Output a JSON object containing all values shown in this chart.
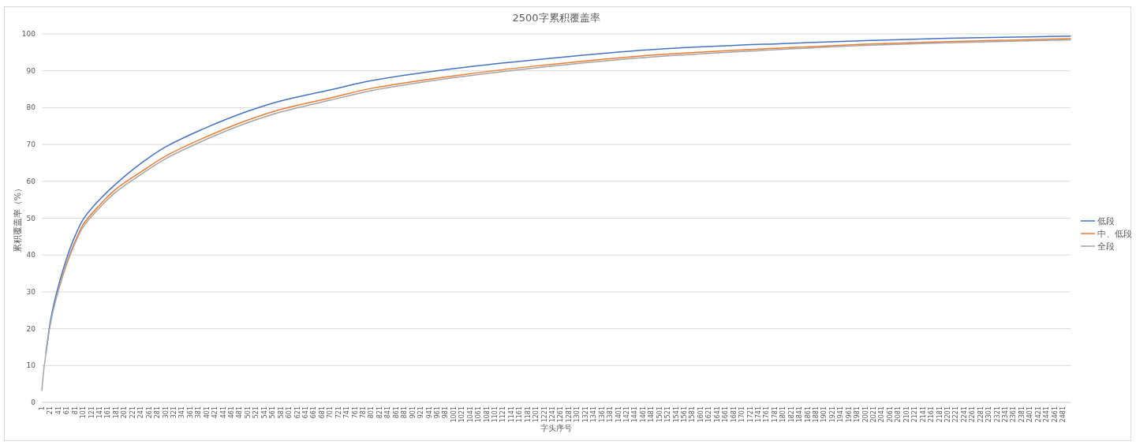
{
  "chart_data": {
    "type": "line",
    "title": "2500字累积覆盖率",
    "xlabel": "字头序号",
    "ylabel": "累积覆盖率（%）",
    "x": [
      1,
      6,
      11,
      21,
      31,
      41,
      61,
      81,
      101,
      141,
      181,
      241,
      301,
      401,
      501,
      581,
      701,
      801,
      1001,
      1201,
      1501,
      1801,
      2001,
      2201,
      2500
    ],
    "series": [
      {
        "name": "低段",
        "color": "#4472c4",
        "values": [
          null,
          null,
          13.5,
          21.5,
          27,
          31.5,
          39,
          45,
          49.6,
          55,
          59.3,
          64.8,
          69.3,
          74.6,
          79,
          81.8,
          84.8,
          87.3,
          90.6,
          93.0,
          95.9,
          97.4,
          98.2,
          98.8,
          99.4
        ]
      },
      {
        "name": "中、低段",
        "color": "#ed7d31",
        "values": [
          null,
          null,
          null,
          null,
          null,
          30.5,
          37.8,
          43.5,
          48.2,
          53.5,
          57.9,
          62.5,
          66.8,
          72.1,
          76.6,
          79.5,
          82.6,
          85.2,
          88.6,
          91.3,
          94.4,
          96.2,
          97.2,
          97.9,
          98.7
        ]
      },
      {
        "name": "全段",
        "color": "#a5a5a5",
        "values": [
          3.2,
          9,
          13.2,
          20.8,
          26,
          30.2,
          37.3,
          43,
          47.5,
          52.8,
          57.1,
          61.8,
          66.1,
          71.4,
          75.9,
          78.8,
          82,
          84.6,
          88.1,
          90.8,
          93.9,
          95.8,
          96.9,
          97.6,
          98.4
        ]
      }
    ],
    "xlim": [
      1,
      2500
    ],
    "xticks": [
      1,
      21,
      41,
      61,
      81,
      101,
      121,
      141,
      161,
      181,
      201,
      221,
      241,
      261,
      281,
      301,
      321,
      341,
      361,
      381,
      401,
      421,
      441,
      461,
      481,
      501,
      521,
      541,
      561,
      581,
      601,
      621,
      641,
      661,
      681,
      701,
      721,
      741,
      761,
      781,
      801,
      821,
      841,
      861,
      881,
      901,
      921,
      941,
      961,
      981,
      1001,
      1021,
      1041,
      1061,
      1081,
      1101,
      1121,
      1141,
      1161,
      1181,
      1201,
      1221,
      1241,
      1261,
      1281,
      1301,
      1321,
      1341,
      1361,
      1381,
      1401,
      1421,
      1441,
      1461,
      1481,
      1501,
      1521,
      1541,
      1561,
      1581,
      1601,
      1621,
      1641,
      1661,
      1681,
      1701,
      1721,
      1741,
      1761,
      1781,
      1801,
      1821,
      1841,
      1861,
      1881,
      1901,
      1921,
      1941,
      1961,
      1981,
      2001,
      2021,
      2041,
      2061,
      2081,
      2101,
      2121,
      2141,
      2161,
      2181,
      2201,
      2221,
      2241,
      2261,
      2281,
      2301,
      2321,
      2341,
      2361,
      2381,
      2401,
      2421,
      2441,
      2461,
      2481
    ],
    "ylim": [
      0,
      100
    ],
    "yticks": [
      0,
      10,
      20,
      30,
      40,
      50,
      60,
      70,
      80,
      90,
      100
    ],
    "grid": "y",
    "legend": "right",
    "marker": "none",
    "line_style": "solid"
  }
}
